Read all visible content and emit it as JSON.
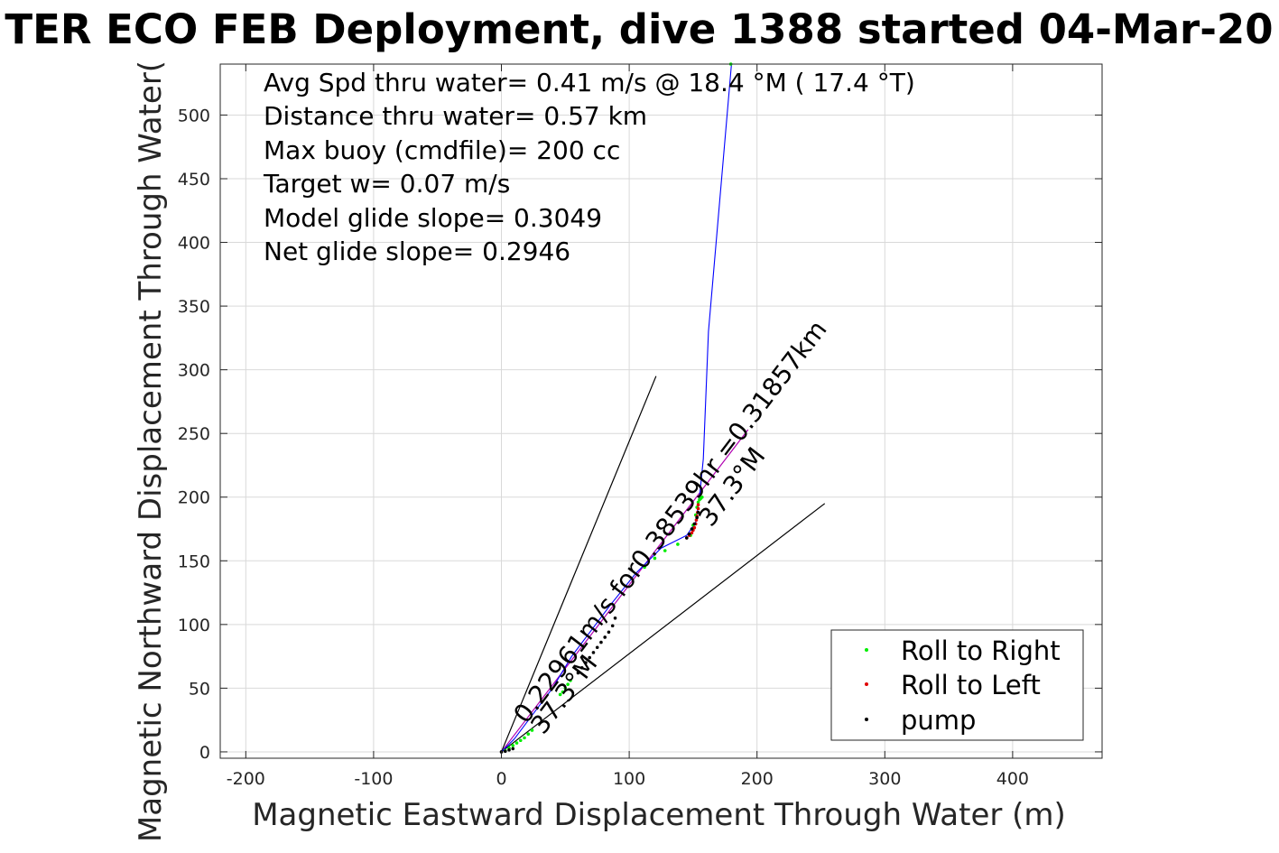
{
  "chart_data": {
    "type": "scatter",
    "title": "TER ECO FEB Deployment, dive 1388 started 04-Mar-20",
    "xlabel": "Magnetic Eastward Displacement Through Water (m)",
    "ylabel": "Magnetic Northward Displacement Through Water(",
    "xlim": [
      -220,
      470
    ],
    "ylim": [
      -5,
      540
    ],
    "xticks": [
      -200,
      -100,
      0,
      100,
      200,
      300,
      400
    ],
    "yticks": [
      0,
      50,
      100,
      150,
      200,
      250,
      300,
      350,
      400,
      450,
      500
    ],
    "grid": true,
    "legend_position": "bottom-right",
    "annotations": [
      "Avg Spd thru water=  0.41 m/s @  18.4 °M ( 17.4 °T)",
      "Distance thru water=  0.57 km",
      "Max buoy (cmdfile)= 200 cc",
      "Target w= 0.07 m/s",
      "Model glide slope= 0.3049",
      "Net glide slope= 0.2946"
    ],
    "rotated_labels": {
      "dive_leg": "0.22961m/s for0.38539hr =0.31857km",
      "dive_heading": "37.3°M",
      "climb_heading": "37.3°M"
    },
    "legend": [
      "Roll to Right",
      "Roll to Left",
      "pump"
    ],
    "track": {
      "name": "track",
      "color": "#0000ff",
      "x": [
        0,
        10,
        25,
        40,
        55,
        70,
        85,
        105,
        125,
        145,
        152,
        155,
        158,
        162,
        180
      ],
      "y": [
        0,
        10,
        30,
        50,
        75,
        95,
        115,
        140,
        160,
        170,
        180,
        200,
        230,
        330,
        540
      ]
    },
    "heading_lines": [
      {
        "color": "#000000",
        "x": [
          0,
          121
        ],
        "y": [
          0,
          295
        ]
      },
      {
        "color": "#000000",
        "x": [
          0,
          253
        ],
        "y": [
          0,
          195
        ]
      },
      {
        "color": "#b000b0",
        "x": [
          0,
          193
        ],
        "y": [
          0,
          253
        ]
      }
    ],
    "series": [
      {
        "name": "Roll to Right",
        "color": "#00ee00",
        "x": [
          3,
          6,
          9,
          12,
          15,
          18,
          21,
          24,
          46,
          48,
          50,
          52,
          54,
          112,
          120,
          128,
          138,
          148,
          150,
          152,
          153,
          154,
          155,
          156,
          157,
          179.5
        ],
        "y": [
          1,
          3,
          5,
          7,
          9,
          11,
          14,
          17,
          45,
          47,
          50,
          53,
          56,
          145,
          152,
          158,
          163,
          170,
          178,
          186,
          192,
          196,
          198,
          199,
          200,
          540
        ]
      },
      {
        "name": "Roll to Left",
        "color": "#e00000",
        "x": [
          145,
          147,
          149,
          150,
          151,
          152,
          152.5,
          153,
          153.5,
          154,
          154
        ],
        "y": [
          168,
          170,
          172,
          174,
          176,
          179,
          182,
          185,
          188,
          191,
          194
        ]
      },
      {
        "name": "pump",
        "color": "#000000",
        "x": [
          0,
          3,
          6,
          9,
          60,
          63,
          66,
          69,
          72,
          75,
          78,
          81,
          84,
          87,
          89,
          145,
          147,
          149,
          151,
          153,
          154
        ],
        "y": [
          0,
          0.5,
          1.5,
          2.5,
          62,
          66,
          70,
          74,
          78,
          82,
          86,
          90,
          94,
          99,
          105,
          168,
          171,
          175,
          179,
          184,
          188
        ]
      }
    ]
  }
}
